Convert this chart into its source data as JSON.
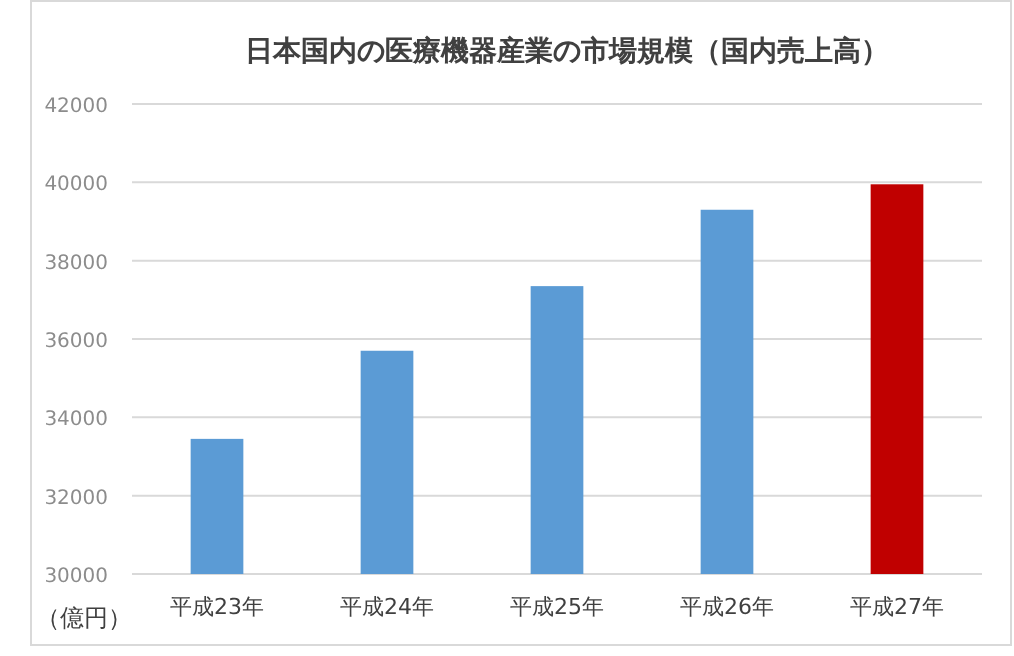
{
  "chart_data": {
    "type": "bar",
    "title": "日本国内の医療機器産業の市場規模（国内売上高）",
    "ylabel": "（億円）",
    "categories": [
      "平成23年",
      "平成24年",
      "平成25年",
      "平成26年",
      "平成27年"
    ],
    "values": [
      33450,
      35700,
      37350,
      39300,
      39950
    ],
    "colors": [
      "#5b9bd5",
      "#5b9bd5",
      "#5b9bd5",
      "#5b9bd5",
      "#c00000"
    ],
    "ylim": [
      30000,
      42000
    ],
    "yticks": [
      30000,
      32000,
      34000,
      36000,
      38000,
      40000,
      42000
    ],
    "grid": "y"
  }
}
